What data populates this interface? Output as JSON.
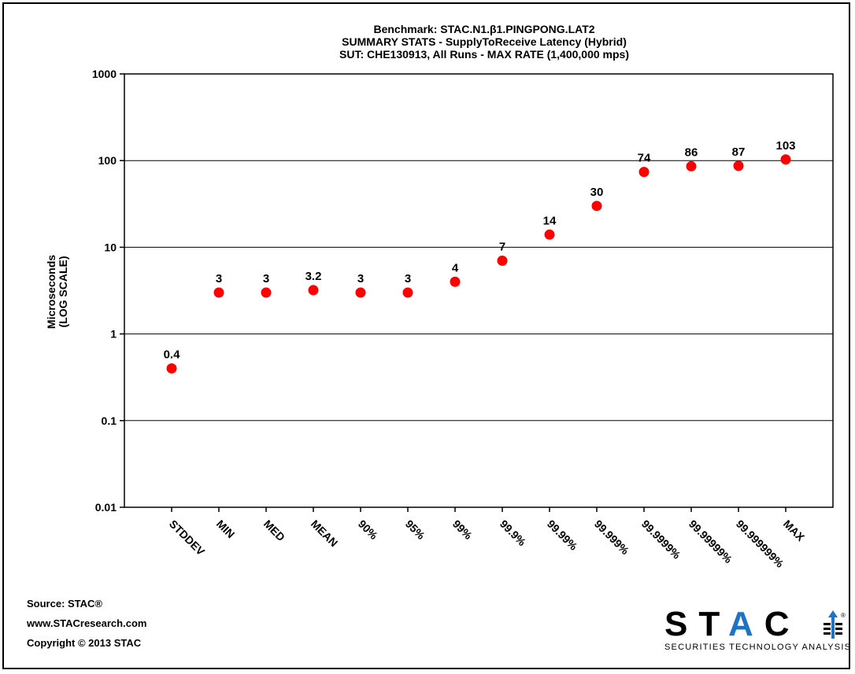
{
  "chart_data": {
    "type": "scatter",
    "title_lines": [
      "Benchmark: STAC.N1.β1.PINGPONG.LAT2",
      "SUMMARY STATS - SupplyToReceive Latency (Hybrid)",
      "SUT: CHE130913, All Runs - MAX RATE (1,400,000 mps)"
    ],
    "ylabel": [
      "Microseconds",
      "(LOG SCALE)"
    ],
    "yscale": "log",
    "ylim": [
      0.01,
      1000
    ],
    "yticks": [
      "0.01",
      "0.1",
      "1",
      "10",
      "100",
      "1000"
    ],
    "grid": "horizontal",
    "marker_color": "#ff0000",
    "categories": [
      "STDDEV",
      "MIN",
      "MED",
      "MEAN",
      "90%",
      "95%",
      "99%",
      "99.9%",
      "99.99%",
      "99.999%",
      "99.9999%",
      "99.99999%",
      "99.999999%",
      "MAX"
    ],
    "values": [
      0.4,
      3,
      3,
      3.2,
      3,
      3,
      4,
      7,
      14,
      30,
      74,
      86,
      87,
      103
    ],
    "data_labels": [
      "0.4",
      "3",
      "3",
      "3.2",
      "3",
      "3",
      "4",
      "7",
      "14",
      "30",
      "74",
      "86",
      "87",
      "103"
    ]
  },
  "source": {
    "line1": "Source: STAC®",
    "line2": "www.STACresearch.com",
    "line3": "Copyright © 2013 STAC"
  },
  "logo": {
    "letters": [
      "S",
      "T",
      "A",
      "C"
    ],
    "accent_color": "#1e74c2",
    "tagline": "SECURITIES TECHNOLOGY ANALYSIS CENTER",
    "reg": "®"
  }
}
